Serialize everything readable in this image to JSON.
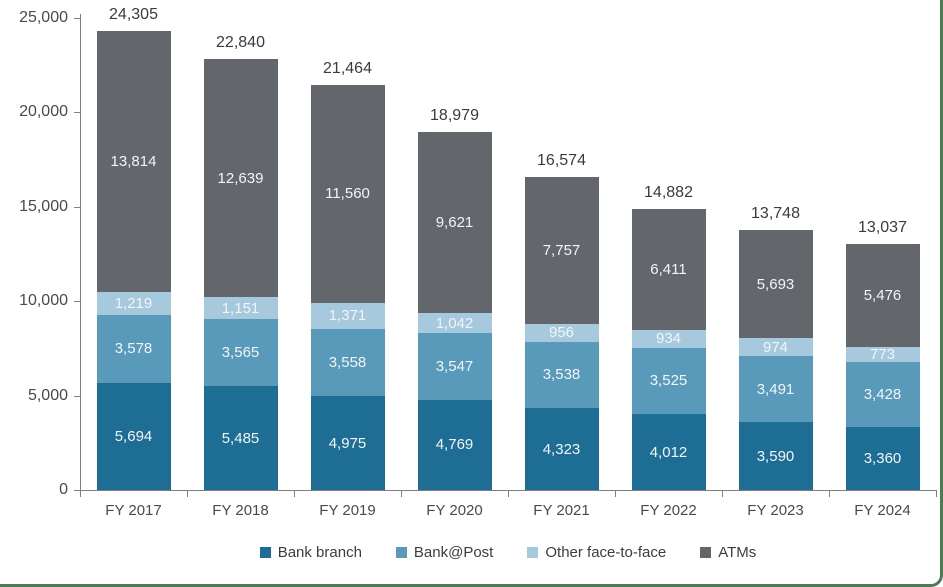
{
  "chart_data": {
    "type": "bar",
    "subtype": "stacked-vertical",
    "title": "",
    "xlabel": "",
    "ylabel": "",
    "categories": [
      "FY 2017",
      "FY 2018",
      "FY 2019",
      "FY 2020",
      "FY 2021",
      "FY 2022",
      "FY 2023",
      "FY 2024"
    ],
    "series": [
      {
        "name": "Bank branch",
        "color": "#1d6d94",
        "pattern": "solid",
        "values": [
          5694,
          5485,
          4975,
          4769,
          4323,
          4012,
          3590,
          3360
        ]
      },
      {
        "name": "Bank@Post",
        "color": "#5999ba",
        "pattern": "solid",
        "values": [
          3578,
          3565,
          3558,
          3547,
          3538,
          3525,
          3491,
          3428
        ]
      },
      {
        "name": "Other face-to-face",
        "color": "#a6c9de",
        "pattern": "dots",
        "values": [
          1219,
          1151,
          1371,
          1042,
          956,
          934,
          974,
          773
        ]
      },
      {
        "name": "ATMs",
        "color": "#63666a",
        "pattern": "solid",
        "values": [
          13814,
          12639,
          11560,
          9621,
          7757,
          6411,
          5693,
          5476
        ]
      }
    ],
    "totals": [
      24305,
      22840,
      21464,
      18979,
      16574,
      14882,
      13748,
      13037
    ],
    "ylim": [
      0,
      25000
    ],
    "y_tick_step": 5000,
    "y_tick_labels": [
      "0",
      "5,000",
      "10,000",
      "15,000",
      "20,000",
      "25,000"
    ],
    "grid": "off",
    "legend_position": "bottom",
    "accent_border_color": "#4e7b55"
  }
}
